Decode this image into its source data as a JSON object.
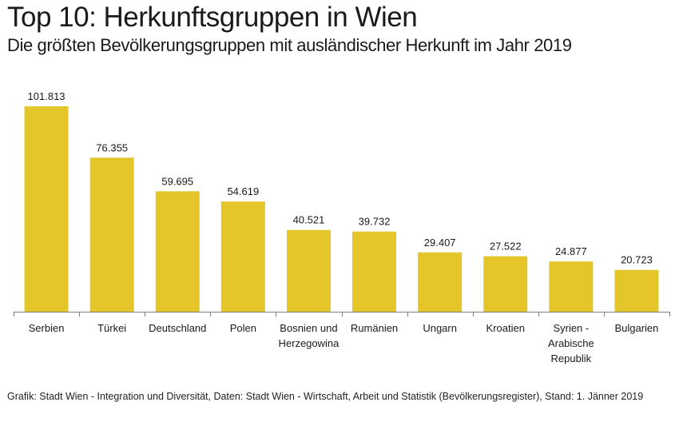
{
  "header": {
    "title": "Top 10: Herkunftsgruppen in Wien",
    "subtitle": "Die größten Bevölkerungsgruppen mit ausländischer Herkunft im Jahr 2019"
  },
  "footer": {
    "source": "Grafik: Stadt Wien - Integration und Diversität, Daten: Stadt Wien - Wirtschaft, Arbeit und Statistik (Bevölkerungsregister),  Stand: 1. Jänner 2019"
  },
  "colors": {
    "bar": "#E4C62A",
    "axis": "#808080",
    "text": "#1a1a1a"
  },
  "chart_data": {
    "type": "bar",
    "title": "Top 10: Herkunftsgruppen in Wien",
    "subtitle": "Die größten Bevölkerungsgruppen mit ausländischer Herkunft im Jahr 2019",
    "xlabel": "",
    "ylabel": "",
    "categories": [
      [
        "Serbien"
      ],
      [
        "Türkei"
      ],
      [
        "Deutschland"
      ],
      [
        "Polen"
      ],
      [
        "Bosnien und",
        "Herzegowina"
      ],
      [
        "Rumänien"
      ],
      [
        "Ungarn"
      ],
      [
        "Kroatien"
      ],
      [
        "Syrien -",
        "Arabische",
        "Republik"
      ],
      [
        "Bulgarien"
      ]
    ],
    "values": [
      101813,
      76355,
      59695,
      54619,
      40521,
      39732,
      29407,
      27522,
      24877,
      20723
    ],
    "value_labels": [
      "101.813",
      "76.355",
      "59.695",
      "54.619",
      "40.521",
      "39.732",
      "29.407",
      "27.522",
      "24.877",
      "20.723"
    ],
    "ylim": [
      0,
      101813
    ],
    "grid": false,
    "legend": "none"
  }
}
